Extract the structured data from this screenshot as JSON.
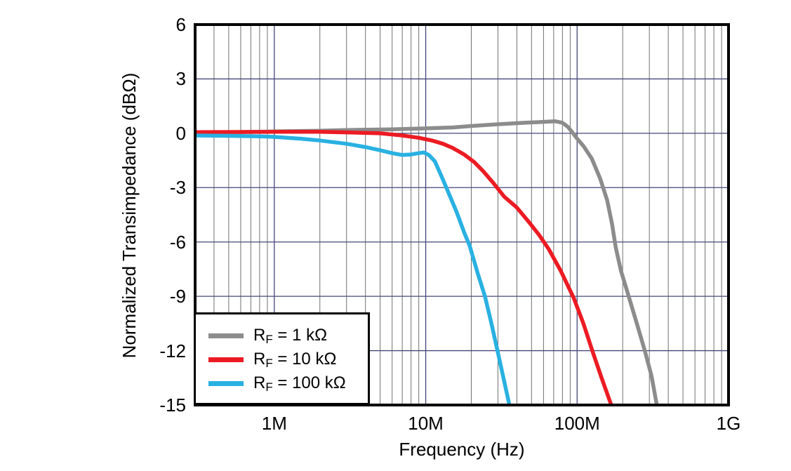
{
  "figure": {
    "background": "#ffffff",
    "frame_color": "#000000"
  },
  "chart_data": {
    "type": "line",
    "title": "",
    "xlabel": "Frequency (Hz)",
    "ylabel": "Normalized Transimpedance (dBΩ)",
    "x_scale": "log",
    "x_range_hz": [
      300000.0,
      1000000000.0
    ],
    "y_range_db": [
      -15,
      6
    ],
    "y_tick_step_db": 3,
    "grid": {
      "shown": true,
      "minor_color": "#707070",
      "major_color": "#46467a"
    },
    "x_ticks": [
      {
        "hz": 1000000.0,
        "label": "1M"
      },
      {
        "hz": 10000000.0,
        "label": "10M"
      },
      {
        "hz": 100000000.0,
        "label": "100M"
      },
      {
        "hz": 1000000000.0,
        "label": "1G"
      }
    ],
    "y_ticks": [
      {
        "db": 6,
        "label": "6"
      },
      {
        "db": 3,
        "label": "3"
      },
      {
        "db": 0,
        "label": "0"
      },
      {
        "db": -3,
        "label": "-3"
      },
      {
        "db": -6,
        "label": "-6"
      },
      {
        "db": -9,
        "label": "-9"
      },
      {
        "db": -12,
        "label": "-12"
      },
      {
        "db": -15,
        "label": "-15"
      }
    ],
    "legend": {
      "position": "bottom-left"
    },
    "series": [
      {
        "id": "rf-1k",
        "label_main": "R",
        "label_sub": "F",
        "label_rest": " = 1 kΩ",
        "color": "#8C8C8C",
        "points": [
          [
            300000.0,
            0.05
          ],
          [
            600000.0,
            0.07
          ],
          [
            1000000.0,
            0.1
          ],
          [
            2000000.0,
            0.14
          ],
          [
            3000000.0,
            0.18
          ],
          [
            6000000.0,
            0.22
          ],
          [
            10000000.0,
            0.27
          ],
          [
            15000000.0,
            0.32
          ],
          [
            20000000.0,
            0.4
          ],
          [
            30000000.0,
            0.5
          ],
          [
            45000000.0,
            0.58
          ],
          [
            60000000.0,
            0.63
          ],
          [
            72000000.0,
            0.66
          ],
          [
            80000000.0,
            0.58
          ],
          [
            87000000.0,
            0.35
          ],
          [
            93000000.0,
            0.05
          ],
          [
            100000000.0,
            -0.3
          ],
          [
            110000000.0,
            -0.7
          ],
          [
            125000000.0,
            -1.4
          ],
          [
            142000000.0,
            -2.5
          ],
          [
            158000000.0,
            -3.7
          ],
          [
            170000000.0,
            -5.0
          ],
          [
            180000000.0,
            -6.3
          ],
          [
            195000000.0,
            -7.6
          ],
          [
            219000000.0,
            -9
          ],
          [
            250000000.0,
            -10.6
          ],
          [
            280000000.0,
            -12
          ],
          [
            310000000.0,
            -13.4
          ],
          [
            336000000.0,
            -15
          ]
        ]
      },
      {
        "id": "rf-10k",
        "label_main": "R",
        "label_sub": "F",
        "label_rest": " = 10 kΩ",
        "color": "#EC1B23",
        "points": [
          [
            300000.0,
            0.06
          ],
          [
            1000000.0,
            0.08
          ],
          [
            2000000.0,
            0.08
          ],
          [
            3000000.0,
            0.05
          ],
          [
            5000000.0,
            0
          ],
          [
            7000000.0,
            -0.12
          ],
          [
            9000000.0,
            -0.25
          ],
          [
            11000000.0,
            -0.4
          ],
          [
            13000000.0,
            -0.58
          ],
          [
            15000000.0,
            -0.8
          ],
          [
            18000000.0,
            -1.18
          ],
          [
            21000000.0,
            -1.6
          ],
          [
            24000000.0,
            -2.1
          ],
          [
            28000000.0,
            -2.75
          ],
          [
            33000000.0,
            -3.5
          ],
          [
            40000000.0,
            -4.1
          ],
          [
            48000000.0,
            -4.9
          ],
          [
            56000000.0,
            -5.6
          ],
          [
            65000000.0,
            -6.4
          ],
          [
            78000000.0,
            -7.6
          ],
          [
            95000000.0,
            -9.1
          ],
          [
            110000000.0,
            -10.5
          ],
          [
            126000000.0,
            -12
          ],
          [
            145000000.0,
            -13.5
          ],
          [
            168000000.0,
            -15
          ]
        ]
      },
      {
        "id": "rf-100k",
        "label_main": "R",
        "label_sub": "F",
        "label_rest": " = 100 kΩ",
        "color": "#29B1E2",
        "points": [
          [
            300000.0,
            -0.12
          ],
          [
            500000.0,
            -0.14
          ],
          [
            800000.0,
            -0.17
          ],
          [
            1000000.0,
            -0.2
          ],
          [
            1500000.0,
            -0.3
          ],
          [
            2000000.0,
            -0.4
          ],
          [
            3000000.0,
            -0.58
          ],
          [
            4000000.0,
            -0.76
          ],
          [
            5000000.0,
            -0.94
          ],
          [
            6000000.0,
            -1.1
          ],
          [
            7000000.0,
            -1.2
          ],
          [
            8000000.0,
            -1.17
          ],
          [
            9000000.0,
            -1.1
          ],
          [
            9700000.0,
            -1.06
          ],
          [
            10500000.0,
            -1.2
          ],
          [
            11500000.0,
            -1.55
          ],
          [
            12600000.0,
            -2.3
          ],
          [
            14000000.0,
            -3.2
          ],
          [
            16000000.0,
            -4.35
          ],
          [
            18000000.0,
            -5.5
          ],
          [
            19500000.0,
            -6.2
          ],
          [
            22000000.0,
            -7.7
          ],
          [
            24600000.0,
            -9
          ],
          [
            27000000.0,
            -10.4
          ],
          [
            29800000.0,
            -12
          ],
          [
            33000000.0,
            -13.7
          ],
          [
            35700000.0,
            -15
          ]
        ]
      }
    ]
  }
}
